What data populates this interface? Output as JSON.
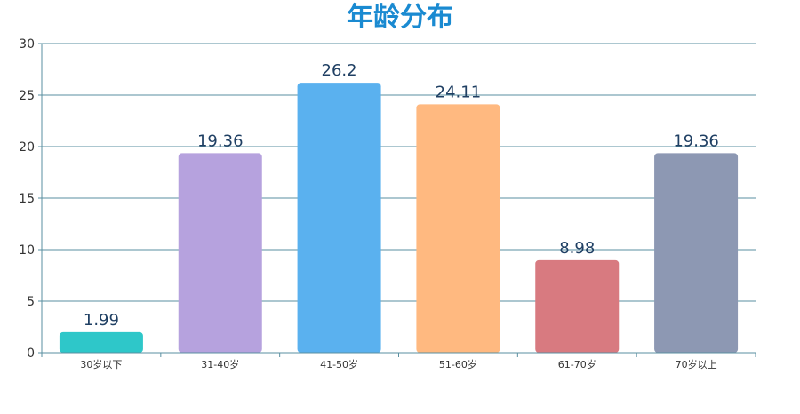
{
  "chart_data": {
    "type": "bar",
    "title": "年龄分布",
    "categories": [
      "30岁以下",
      "31-40岁",
      "41-50岁",
      "51-60岁",
      "61-70岁",
      "70岁以上"
    ],
    "values": [
      1.99,
      19.36,
      26.2,
      24.11,
      8.98,
      19.36
    ],
    "colors": [
      "#2ec7c9",
      "#b6a2de",
      "#5ab1ef",
      "#ffb980",
      "#d87a80",
      "#8d98b3"
    ],
    "ylim": [
      0,
      30
    ],
    "yticks": [
      0,
      5,
      10,
      15,
      20,
      25,
      30
    ],
    "xlabel": "",
    "ylabel": "",
    "grid": true,
    "show_data_labels": true
  },
  "style": {
    "title_color": "#1a8ad1",
    "gridline_color": "#5a8fa0",
    "axis_color": "#5a8fa0"
  }
}
